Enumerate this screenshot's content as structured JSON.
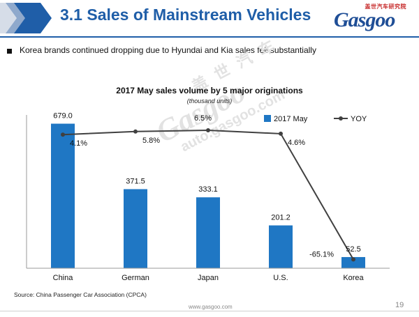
{
  "header": {
    "title": "3.1 Sales of Mainstream Vehicles",
    "logo_cn": "盖世汽车研究院",
    "logo_text": "Gasgoo"
  },
  "bullet": "Korea brands continued dropping due to Hyundai and Kia sales fell substantially",
  "watermark": {
    "cn": "盖 世 汽 车",
    "main": "Gasgoo",
    "url": "auto.gasgoo.com"
  },
  "chart_data": {
    "type": "bar",
    "title": "2017 May sales volume by 5 major originations",
    "subtitle": "(thousand units)",
    "categories": [
      "China",
      "German",
      "Japan",
      "U.S.",
      "Korea"
    ],
    "series": [
      {
        "name": "2017 May",
        "type": "bar",
        "values": [
          679.0,
          371.5,
          333.1,
          201.2,
          52.5
        ],
        "labels": [
          "679.0",
          "371.5",
          "333.1",
          "201.2",
          "52.5"
        ],
        "color": "#1f77c4"
      },
      {
        "name": "YOY",
        "type": "line",
        "values": [
          4.1,
          5.8,
          6.5,
          4.6,
          -65.1
        ],
        "labels": [
          "4.1%",
          "5.8%",
          "6.5%",
          "4.6%",
          "-65.1%"
        ],
        "color": "#404040"
      }
    ],
    "ylim": [
      0,
      720
    ],
    "y2lim": [
      -70,
      15
    ],
    "legend_position": "top-right",
    "grid": false
  },
  "source": "Source: China Passenger Car Association (CPCA)",
  "footer": {
    "url": "www.gasgoo.com",
    "page": "19"
  }
}
